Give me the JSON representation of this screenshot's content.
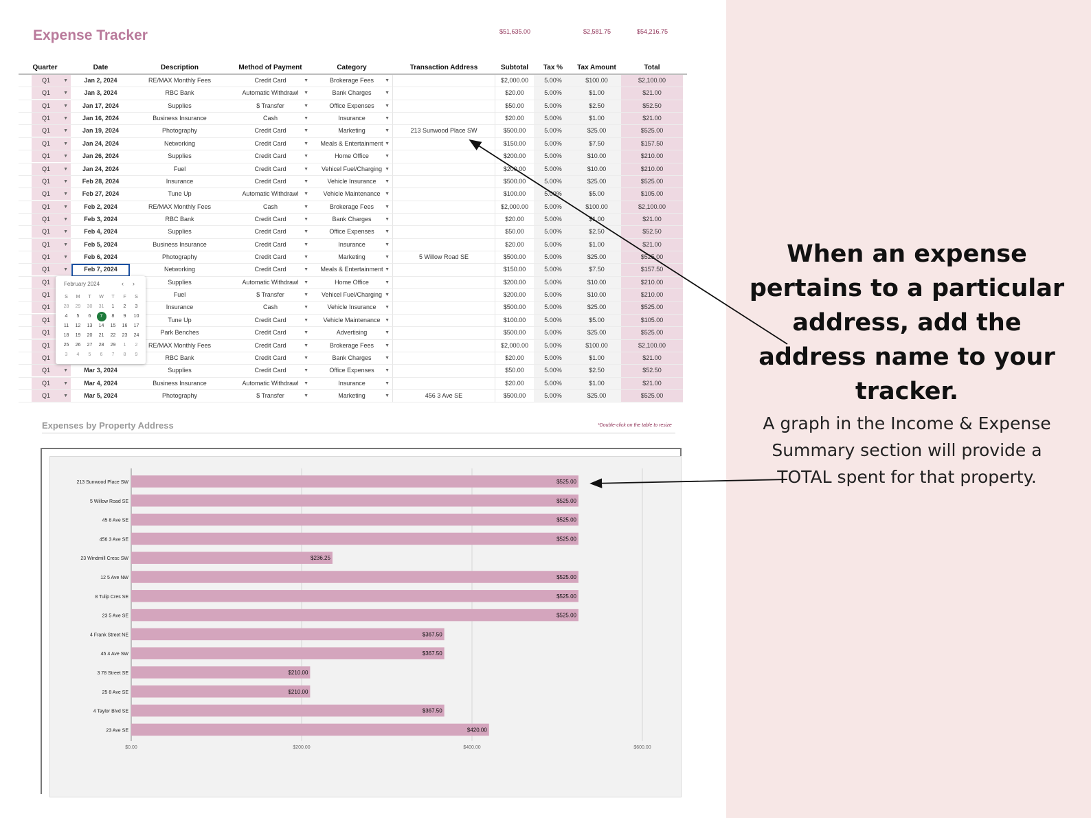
{
  "app_title": "Expense Tracker",
  "totals": {
    "subtotal": "$51,635.00",
    "tax_amount": "$2,581.75",
    "total": "$54,216.75"
  },
  "table": {
    "headers": [
      "Quarter",
      "Date",
      "Description",
      "Method of Payment",
      "Category",
      "Transaction Address",
      "Subtotal",
      "Tax %",
      "Tax Amount",
      "Total"
    ],
    "rows": [
      [
        "Q1",
        "Jan 2, 2024",
        "RE/MAX Monthly Fees",
        "Credit Card",
        "Brokerage Fees",
        "",
        "$2,000.00",
        "5.00%",
        "$100.00",
        "$2,100.00"
      ],
      [
        "Q1",
        "Jan 3, 2024",
        "RBC Bank",
        "Automatic Withdrawl",
        "Bank Charges",
        "",
        "$20.00",
        "5.00%",
        "$1.00",
        "$21.00"
      ],
      [
        "Q1",
        "Jan 17, 2024",
        "Supplies",
        "$ Transfer",
        "Office Expenses",
        "",
        "$50.00",
        "5.00%",
        "$2.50",
        "$52.50"
      ],
      [
        "Q1",
        "Jan 16, 2024",
        "Business Insurance",
        "Cash",
        "Insurance",
        "",
        "$20.00",
        "5.00%",
        "$1.00",
        "$21.00"
      ],
      [
        "Q1",
        "Jan 19, 2024",
        "Photography",
        "Credit Card",
        "Marketing",
        "213 Sunwood Place SW",
        "$500.00",
        "5.00%",
        "$25.00",
        "$525.00"
      ],
      [
        "Q1",
        "Jan 24, 2024",
        "Networking",
        "Credit Card",
        "Meals & Entertainment",
        "",
        "$150.00",
        "5.00%",
        "$7.50",
        "$157.50"
      ],
      [
        "Q1",
        "Jan 26, 2024",
        "Supplies",
        "Credit Card",
        "Home Office",
        "",
        "$200.00",
        "5.00%",
        "$10.00",
        "$210.00"
      ],
      [
        "Q1",
        "Jan 24, 2024",
        "Fuel",
        "Credit Card",
        "Vehicel Fuel/Charging",
        "",
        "$200.00",
        "5.00%",
        "$10.00",
        "$210.00"
      ],
      [
        "Q1",
        "Feb 28, 2024",
        "Insurance",
        "Credit Card",
        "Vehicle Insurance",
        "",
        "$500.00",
        "5.00%",
        "$25.00",
        "$525.00"
      ],
      [
        "Q1",
        "Feb 27, 2024",
        "Tune Up",
        "Automatic Withdrawl",
        "Vehicle Maintenance",
        "",
        "$100.00",
        "5.00%",
        "$5.00",
        "$105.00"
      ],
      [
        "Q1",
        "Feb 2, 2024",
        "RE/MAX Monthly Fees",
        "Cash",
        "Brokerage Fees",
        "",
        "$2,000.00",
        "5.00%",
        "$100.00",
        "$2,100.00"
      ],
      [
        "Q1",
        "Feb 3, 2024",
        "RBC Bank",
        "Credit Card",
        "Bank Charges",
        "",
        "$20.00",
        "5.00%",
        "$1.00",
        "$21.00"
      ],
      [
        "Q1",
        "Feb 4, 2024",
        "Supplies",
        "Credit Card",
        "Office Expenses",
        "",
        "$50.00",
        "5.00%",
        "$2.50",
        "$52.50"
      ],
      [
        "Q1",
        "Feb 5, 2024",
        "Business Insurance",
        "Credit Card",
        "Insurance",
        "",
        "$20.00",
        "5.00%",
        "$1.00",
        "$21.00"
      ],
      [
        "Q1",
        "Feb 6, 2024",
        "Photography",
        "Credit Card",
        "Marketing",
        "5 Willow Road SE",
        "$500.00",
        "5.00%",
        "$25.00",
        "$525.00"
      ],
      [
        "Q1",
        "Feb 7, 2024",
        "Networking",
        "Credit Card",
        "Meals & Entertainment",
        "",
        "$150.00",
        "5.00%",
        "$7.50",
        "$157.50"
      ],
      [
        "Q1",
        "",
        "Supplies",
        "Automatic Withdrawl",
        "Home Office",
        "",
        "$200.00",
        "5.00%",
        "$10.00",
        "$210.00"
      ],
      [
        "Q1",
        "",
        "Fuel",
        "$ Transfer",
        "Vehicel Fuel/Charging",
        "",
        "$200.00",
        "5.00%",
        "$10.00",
        "$210.00"
      ],
      [
        "Q1",
        "",
        "Insurance",
        "Cash",
        "Vehicle Insurance",
        "",
        "$500.00",
        "5.00%",
        "$25.00",
        "$525.00"
      ],
      [
        "Q1",
        "",
        "Tune Up",
        "Credit Card",
        "Vehicle Maintenance",
        "",
        "$100.00",
        "5.00%",
        "$5.00",
        "$105.00"
      ],
      [
        "Q1",
        "",
        "Park Benches",
        "Credit Card",
        "Advertising",
        "",
        "$500.00",
        "5.00%",
        "$25.00",
        "$525.00"
      ],
      [
        "Q1",
        "",
        "RE/MAX Monthly Fees",
        "Credit Card",
        "Brokerage Fees",
        "",
        "$2,000.00",
        "5.00%",
        "$100.00",
        "$2,100.00"
      ],
      [
        "Q1",
        "",
        "RBC Bank",
        "Credit Card",
        "Bank Charges",
        "",
        "$20.00",
        "5.00%",
        "$1.00",
        "$21.00"
      ],
      [
        "Q1",
        "Mar 3, 2024",
        "Supplies",
        "Credit Card",
        "Office Expenses",
        "",
        "$50.00",
        "5.00%",
        "$2.50",
        "$52.50"
      ],
      [
        "Q1",
        "Mar 4, 2024",
        "Business Insurance",
        "Automatic Withdrawl",
        "Insurance",
        "",
        "$20.00",
        "5.00%",
        "$1.00",
        "$21.00"
      ],
      [
        "Q1",
        "Mar 5, 2024",
        "Photography",
        "$ Transfer",
        "Marketing",
        "456 3 Ave SE",
        "$500.00",
        "5.00%",
        "$25.00",
        "$525.00"
      ]
    ]
  },
  "datepicker": {
    "month_label": "February 2024",
    "weekdays": [
      "S",
      "M",
      "T",
      "W",
      "T",
      "F",
      "S"
    ],
    "weeks": [
      [
        "28",
        "29",
        "30",
        "31",
        "1",
        "2",
        "3"
      ],
      [
        "4",
        "5",
        "6",
        "7",
        "8",
        "9",
        "10"
      ],
      [
        "11",
        "12",
        "13",
        "14",
        "15",
        "16",
        "17"
      ],
      [
        "18",
        "19",
        "20",
        "21",
        "22",
        "23",
        "24"
      ],
      [
        "25",
        "26",
        "27",
        "28",
        "29",
        "1",
        "2"
      ],
      [
        "3",
        "4",
        "5",
        "6",
        "7",
        "8",
        "9"
      ]
    ],
    "selected_day": "7"
  },
  "section": {
    "title": "Expenses by Property Address",
    "note": "*Double-click on the table to resize"
  },
  "chart_data": {
    "type": "bar",
    "orientation": "horizontal",
    "categories": [
      "213 Sunwood Place SW",
      "5 Willow Road SE",
      "45 8 Ave SE",
      "456 3 Ave SE",
      "23 Windmill Cresc SW",
      "12 5 Ave NW",
      "8 Tulip Cres SE",
      "23 5 Ave SE",
      "4 Frank Street NE",
      "45 4 Ave SW",
      "3 78 Street SE",
      "25 8 Ave SE",
      "4 Taylor Blvd SE",
      "23 Ave SE"
    ],
    "values": [
      525,
      525,
      525,
      525,
      236.25,
      525,
      525,
      525,
      367.5,
      367.5,
      210,
      210,
      367.5,
      420
    ],
    "value_labels": [
      "$525.00",
      "$525.00",
      "$525.00",
      "$525.00",
      "$236.25",
      "$525.00",
      "$525.00",
      "$525.00",
      "$367.50",
      "$367.50",
      "$210.00",
      "$210.00",
      "$367.50",
      "$420.00"
    ],
    "x_ticks": [
      0,
      200,
      400,
      600
    ],
    "x_tick_labels": [
      "$0.00",
      "$200.00",
      "$400.00",
      "$600.00"
    ],
    "xlim": [
      0,
      600
    ],
    "grid": true,
    "bar_color": "#d4a5bd"
  },
  "callout": {
    "headline": "When an expense pertains to a particular address, add the address name to your tracker.",
    "body": "A graph in the Income & Expense Summary section will provide a TOTAL spent for that property."
  },
  "colors": {
    "accent": "#b97a9b",
    "right_panel": "#f7e7e6",
    "selected_date": "#1e7a3b",
    "totals": "#8e2f55"
  }
}
